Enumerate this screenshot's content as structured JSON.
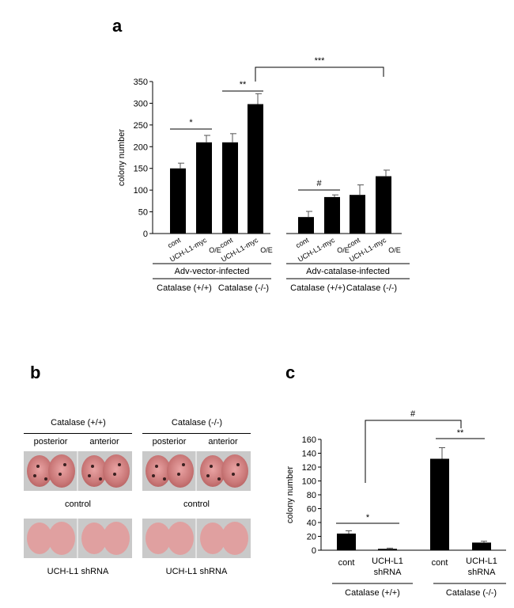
{
  "panel_labels": {
    "a": "a",
    "b": "b",
    "c": "c"
  },
  "chart_data": [
    {
      "id": "a",
      "type": "bar",
      "ylabel": "colony number",
      "ylim": [
        0,
        350
      ],
      "yticks": [
        0,
        50,
        100,
        150,
        200,
        250,
        300,
        350
      ],
      "bars": [
        {
          "label": "cont",
          "value": 150,
          "error": 12
        },
        {
          "label": "UCH-L1-myc O/E",
          "value": 210,
          "error": 16
        },
        {
          "label": "cont",
          "value": 210,
          "error": 20
        },
        {
          "label": "UCH-L1-myc O/E",
          "value": 298,
          "error": 24
        },
        {
          "label": "cont",
          "value": 38,
          "error": 13
        },
        {
          "label": "UCH-L1-myc O/E",
          "value": 84,
          "error": 5
        },
        {
          "label": "cont",
          "value": 89,
          "error": 23
        },
        {
          "label": "UCH-L1-myc O/E",
          "value": 132,
          "error": 14
        }
      ],
      "significance": [
        {
          "text": "*",
          "from": 0,
          "to": 1
        },
        {
          "text": "**",
          "from": 2,
          "to": 3
        },
        {
          "text": "#",
          "from": 4,
          "to": 5
        },
        {
          "text": "***",
          "from": 3,
          "to": 7
        }
      ],
      "group_labels": [
        "Adv-vector-infected",
        "Adv-catalase-infected"
      ],
      "subgroup_labels": [
        "Catalase (+/+)",
        "Catalase (-/-)",
        "Catalase (+/+)",
        "Catalase (-/-)"
      ]
    },
    {
      "id": "c",
      "type": "bar",
      "ylabel": "colony number",
      "ylim": [
        0,
        160
      ],
      "yticks": [
        0,
        20,
        40,
        60,
        80,
        100,
        120,
        140,
        160
      ],
      "bars": [
        {
          "label": "cont",
          "value": 24,
          "error": 4
        },
        {
          "label": "UCH-L1 shRNA",
          "value": 2,
          "error": 1
        },
        {
          "label": "cont",
          "value": 132,
          "error": 16
        },
        {
          "label": "UCH-L1 shRNA",
          "value": 11,
          "error": 2
        }
      ],
      "significance": [
        {
          "text": "*",
          "from": 0,
          "to": 1
        },
        {
          "text": "**",
          "from": 2,
          "to": 3
        },
        {
          "text": "#",
          "from": 0,
          "to": 2
        }
      ],
      "subgroup_labels": [
        "Catalase (+/+)",
        "Catalase (-/-)"
      ]
    }
  ],
  "panel_b": {
    "groups": [
      {
        "title": "Catalase (+/+)",
        "views": [
          "posterior",
          "anterior"
        ]
      },
      {
        "title": "Catalase (-/-)",
        "views": [
          "posterior",
          "anterior"
        ]
      }
    ],
    "row_labels": [
      "control",
      "control",
      "UCH-L1 shRNA",
      "UCH-L1 shRNA"
    ]
  }
}
